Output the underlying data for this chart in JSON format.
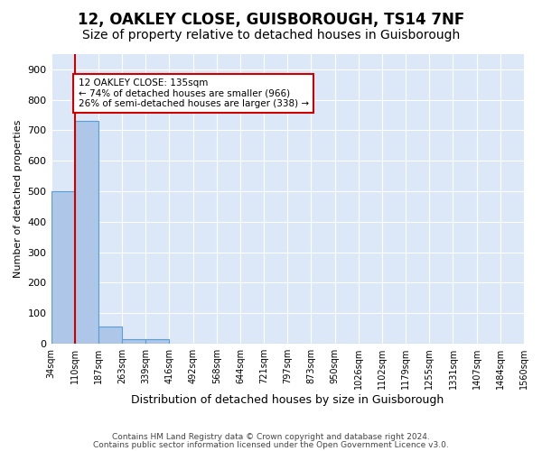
{
  "title1": "12, OAKLEY CLOSE, GUISBOROUGH, TS14 7NF",
  "title2": "Size of property relative to detached houses in Guisborough",
  "xlabel": "Distribution of detached houses by size in Guisborough",
  "ylabel": "Number of detached properties",
  "bin_edges": [
    "34sqm",
    "110sqm",
    "187sqm",
    "263sqm",
    "339sqm",
    "416sqm",
    "492sqm",
    "568sqm",
    "644sqm",
    "721sqm",
    "797sqm",
    "873sqm",
    "950sqm",
    "1026sqm",
    "1102sqm",
    "1179sqm",
    "1255sqm",
    "1331sqm",
    "1407sqm",
    "1484sqm",
    "1560sqm"
  ],
  "bar_values": [
    500,
    730,
    55,
    15,
    15,
    0,
    0,
    0,
    0,
    0,
    0,
    0,
    0,
    0,
    0,
    0,
    0,
    0,
    0,
    0
  ],
  "bar_color": "#aec6e8",
  "bar_edge_color": "#5a9fd4",
  "property_line_x": 1,
  "property_size": "135sqm",
  "annotation_text": "12 OAKLEY CLOSE: 135sqm\n← 74% of detached houses are smaller (966)\n26% of semi-detached houses are larger (338) →",
  "annotation_box_color": "#ffffff",
  "annotation_edge_color": "#cc0000",
  "vline_color": "#cc0000",
  "ylim": [
    0,
    950
  ],
  "yticks": [
    0,
    100,
    200,
    300,
    400,
    500,
    600,
    700,
    800,
    900
  ],
  "footer1": "Contains HM Land Registry data © Crown copyright and database right 2024.",
  "footer2": "Contains public sector information licensed under the Open Government Licence v3.0.",
  "bg_color": "#dce8f8",
  "grid_color": "#ffffff",
  "title1_fontsize": 12,
  "title2_fontsize": 10
}
